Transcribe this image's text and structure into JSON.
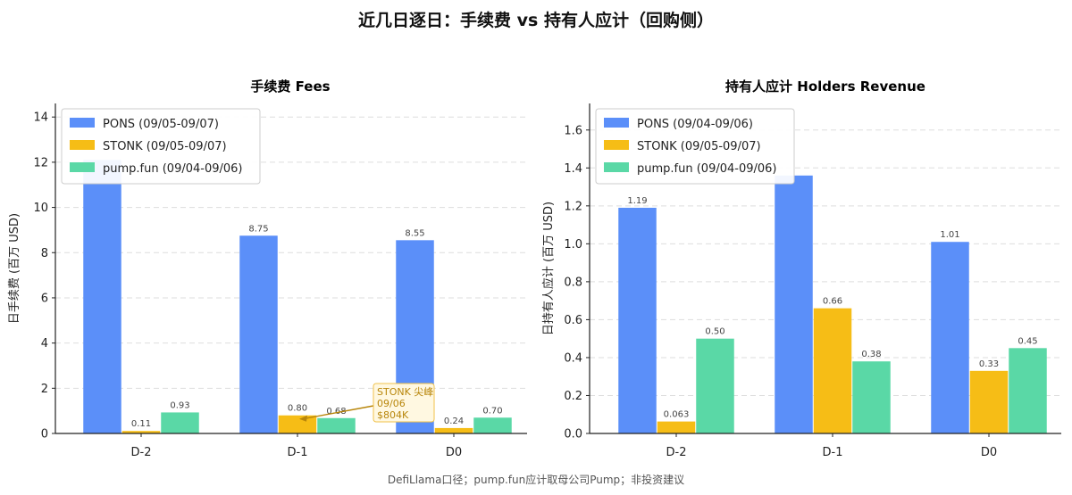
{
  "title": "近几日逐日：手续费 vs 持有人应计（回购侧）",
  "footnote": "DefiLlama口径；pump.fun应计取母公司Pump；非投资建议",
  "colors": {
    "PONS": "#5b8ff9",
    "STONK": "#f6bd16",
    "pump": "#5ad8a6"
  },
  "chart_data": [
    {
      "type": "bar",
      "title": "手续费 Fees",
      "ylabel": "日手续费 (百万 USD)",
      "categories": [
        "D-2",
        "D-1",
        "D0"
      ],
      "ylim": [
        0,
        14.6
      ],
      "yticks": [
        0,
        2,
        4,
        6,
        8,
        10,
        12,
        14
      ],
      "ytick_labels": [
        "0",
        "2",
        "4",
        "6",
        "8",
        "10",
        "12",
        "14"
      ],
      "grid": true,
      "legend_position": "top-left",
      "series": [
        {
          "name": "PONS (09/05-09/07)",
          "key": "PONS",
          "values": [
            12.1,
            8.75,
            8.55
          ],
          "labels": [
            "",
            "8.75",
            "8.55"
          ]
        },
        {
          "name": "STONK (09/05-09/07)",
          "key": "STONK",
          "values": [
            0.11,
            0.8,
            0.24
          ],
          "labels": [
            "0.11",
            "0.80",
            "0.24"
          ]
        },
        {
          "name": "pump.fun (09/04-09/06)",
          "key": "pump",
          "values": [
            0.93,
            0.68,
            0.7
          ],
          "labels": [
            "0.93",
            "0.68",
            "0.70"
          ]
        }
      ],
      "annotation": {
        "lines": [
          "STONK 尖峰",
          "09/06",
          "$804K"
        ],
        "target_category": "D-1",
        "target_series": "STONK",
        "target_value": 0.8
      }
    },
    {
      "type": "bar",
      "title": "持有人应计 Holders Revenue",
      "ylabel": "日持有人应计 (百万 USD)",
      "categories": [
        "D-2",
        "D-1",
        "D0"
      ],
      "ylim": [
        0,
        1.74
      ],
      "yticks": [
        0,
        0.2,
        0.4,
        0.6,
        0.8,
        1.0,
        1.2,
        1.4,
        1.6
      ],
      "ytick_labels": [
        "0.0",
        "0.2",
        "0.4",
        "0.6",
        "0.8",
        "1.0",
        "1.2",
        "1.4",
        "1.6"
      ],
      "grid": true,
      "legend_position": "top-left",
      "series": [
        {
          "name": "PONS (09/04-09/06)",
          "key": "PONS",
          "values": [
            1.19,
            1.36,
            1.01
          ],
          "labels": [
            "1.19",
            "",
            "1.01"
          ]
        },
        {
          "name": "STONK (09/05-09/07)",
          "key": "STONK",
          "values": [
            0.063,
            0.66,
            0.33
          ],
          "labels": [
            "0.063",
            "0.66",
            "0.33"
          ]
        },
        {
          "name": "pump.fun (09/04-09/06)",
          "key": "pump",
          "values": [
            0.5,
            0.38,
            0.45
          ],
          "labels": [
            "0.50",
            "0.38",
            "0.45"
          ]
        }
      ]
    }
  ]
}
